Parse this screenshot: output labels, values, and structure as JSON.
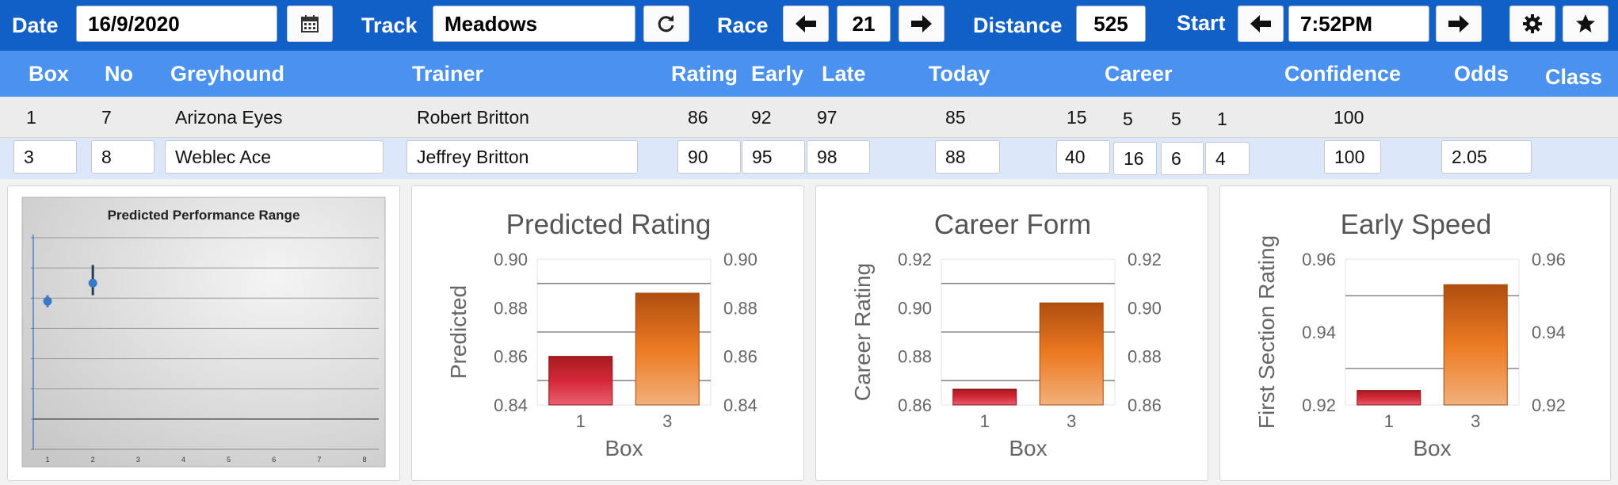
{
  "toolbar": {
    "date_label": "Date",
    "date_value": "16/9/2020",
    "calendar_icon": "calendar-icon",
    "track_label": "Track",
    "track_value": "Meadows",
    "refresh_icon": "refresh-icon",
    "race_label": "Race",
    "race_value": "21",
    "distance_label": "Distance",
    "distance_value": "525",
    "start_label": "Start",
    "start_value": "7:52PM",
    "settings_icon": "gear-icon",
    "favorite_icon": "star-icon"
  },
  "columns": [
    "Box",
    "No",
    "Greyhound",
    "Trainer",
    "Rating",
    "Early",
    "Late",
    "Today",
    "Career",
    "Confidence",
    "Odds",
    "Class"
  ],
  "rows": [
    {
      "box": "1",
      "no": "7",
      "greyhound": "Arizona Eyes",
      "trainer": "Robert Britton",
      "rating": "86",
      "early": "92",
      "late": "97",
      "today": "85",
      "career_1": "15",
      "career_2": "5",
      "career_3": "5",
      "career_4": "1",
      "confidence": "100",
      "odds": "",
      "class": ""
    },
    {
      "box": "3",
      "no": "8",
      "greyhound": "Weblec Ace",
      "trainer": "Jeffrey Britton",
      "rating": "90",
      "early": "95",
      "late": "98",
      "today": "88",
      "career_1": "40",
      "career_2": "16",
      "career_3": "6",
      "career_4": "4",
      "confidence": "100",
      "odds": "2.05",
      "class": ""
    }
  ],
  "colors": {
    "toolbar_bg": "#1060c8",
    "header_bg": "#4a91f0",
    "row_alt_bg": "#dce8f9",
    "bar_red": "#c0202e",
    "bar_orange": "#e87a22",
    "point_blue": "#3a78c8"
  },
  "chart_data": [
    {
      "type": "scatter",
      "title": "Predicted Performance Range",
      "x": [
        1,
        2
      ],
      "y": [
        0.845,
        0.875
      ],
      "error_low": [
        0.835,
        0.855
      ],
      "error_high": [
        0.855,
        0.905
      ],
      "xticks": [
        "1",
        "2",
        "3",
        "4",
        "5",
        "6",
        "7",
        "8"
      ],
      "ylim": [
        0.6,
        0.95
      ],
      "grid": true
    },
    {
      "type": "bar",
      "title": "Predicted Rating",
      "categories": [
        "1",
        "3"
      ],
      "values": [
        0.86,
        0.886
      ],
      "xlabel": "Box",
      "ylabel": "Predicted",
      "ylim": [
        0.84,
        0.9
      ],
      "yticks": [
        "0.84",
        "0.86",
        "0.88",
        "0.90"
      ],
      "grid": true
    },
    {
      "type": "bar",
      "title": "Career Form",
      "categories": [
        "1",
        "3"
      ],
      "values": [
        0.8665,
        0.902
      ],
      "xlabel": "Box",
      "ylabel": "Career Rating",
      "ylim": [
        0.86,
        0.92
      ],
      "yticks": [
        "0.86",
        "0.88",
        "0.90",
        "0.92"
      ],
      "grid": true
    },
    {
      "type": "bar",
      "title": "Early Speed",
      "categories": [
        "1",
        "3"
      ],
      "values": [
        0.924,
        0.953
      ],
      "xlabel": "Box",
      "ylabel": "First Section Rating",
      "ylim": [
        0.92,
        0.96
      ],
      "yticks": [
        "0.92",
        "0.94",
        "0.96"
      ],
      "grid": true
    }
  ]
}
